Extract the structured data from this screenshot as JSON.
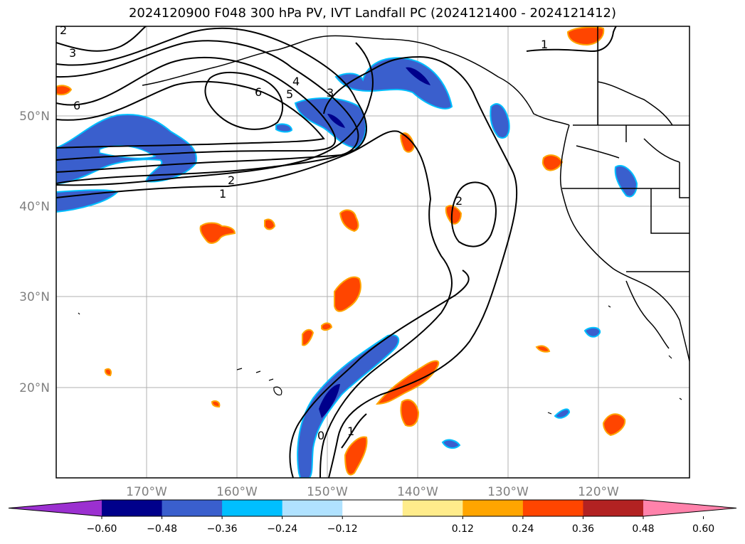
{
  "title": "2024120900 F048 300 hPa PV, IVT Landfall PC (2024121400 - 2024121412)",
  "map": {
    "lat_labels": [
      "50°N",
      "40°N",
      "30°N",
      "20°N"
    ],
    "lon_labels": [
      "170°W",
      "160°W",
      "150°W",
      "140°W",
      "130°W",
      "120°W"
    ],
    "contour_labels": [
      "2",
      "3",
      "6",
      "6",
      "5",
      "4",
      "3",
      "2",
      "1",
      "1",
      "2",
      "0",
      "1"
    ]
  },
  "colorbar": {
    "colors": [
      "#9b30d0",
      "#00008b",
      "#3a5fcd",
      "#00bfff",
      "#b0e2ff",
      "#ffffff",
      "#ffec8b",
      "#ffa500",
      "#ff4500",
      "#b22222",
      "#ff82ab"
    ],
    "tick_labels": [
      "−0.60",
      "−0.48",
      "−0.36",
      "−0.24",
      "−0.12",
      "0.12",
      "0.24",
      "0.36",
      "0.48",
      "0.60"
    ]
  }
}
